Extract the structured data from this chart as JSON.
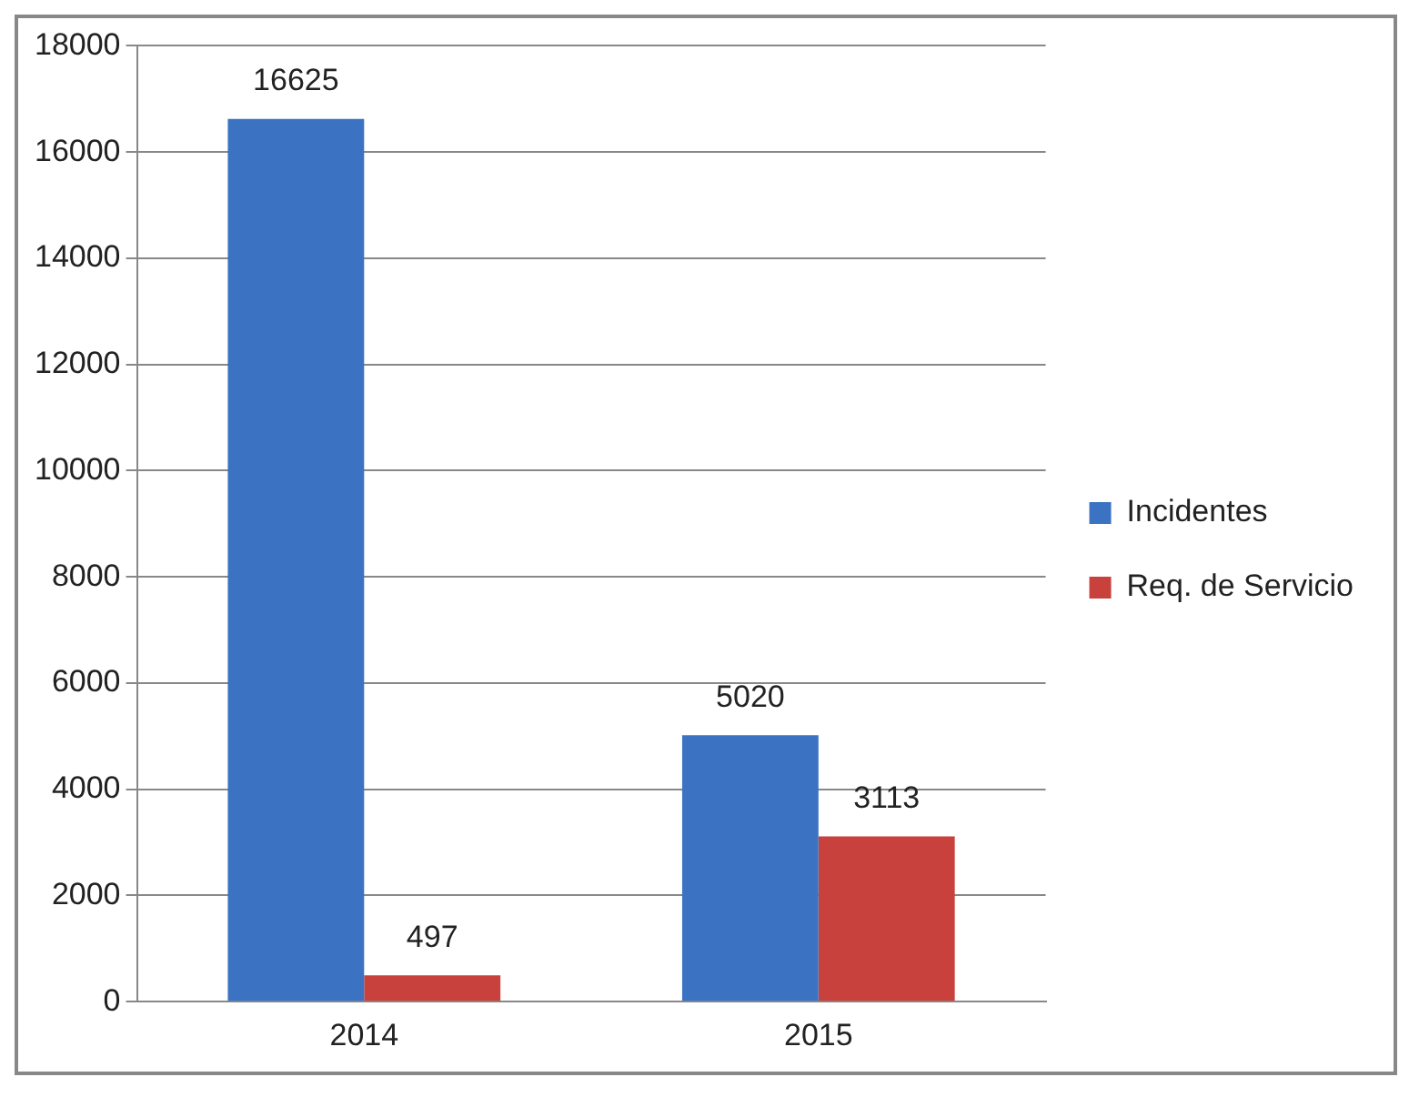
{
  "chart_data": {
    "type": "bar",
    "categories": [
      "2014",
      "2015"
    ],
    "series": [
      {
        "name": "Incidentes",
        "color": "#3b73c2",
        "values": [
          16625,
          5020
        ]
      },
      {
        "name": "Req. de Servicio",
        "color": "#c8413c",
        "values": [
          497,
          3113
        ]
      }
    ],
    "ylim": [
      0,
      18000
    ],
    "yticks": [
      0,
      2000,
      4000,
      6000,
      8000,
      10000,
      12000,
      14000,
      16000,
      18000
    ],
    "grid": "y",
    "legend": "right",
    "data_labels": true
  }
}
